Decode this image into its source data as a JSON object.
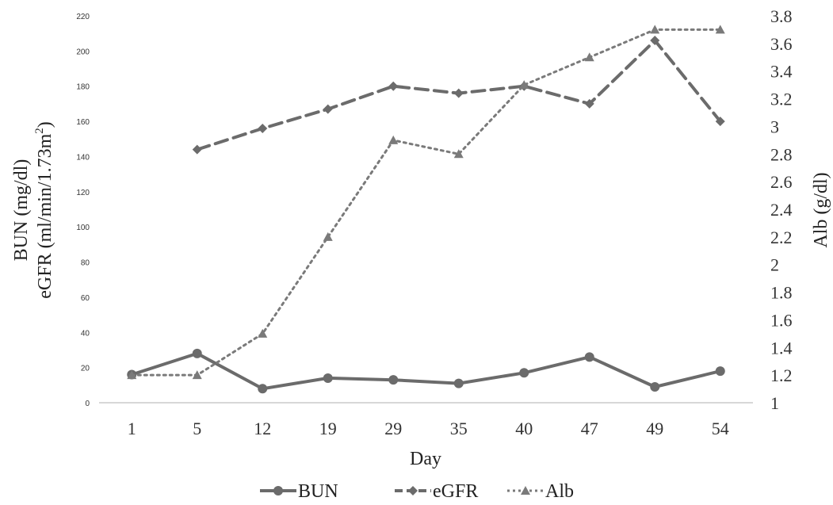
{
  "chart_data": {
    "type": "line",
    "xlabel": "Day",
    "ylabel_left_line1": "BUN (mg/dl)",
    "ylabel_left_line2": "eGFR (ml/min/1.73m",
    "ylabel_left_sup": "2",
    "ylabel_left_close": ")",
    "ylabel_right": "Alb (g/dl)",
    "categories": [
      "1",
      "5",
      "12",
      "19",
      "29",
      "35",
      "40",
      "47",
      "49",
      "54"
    ],
    "ylim_left": [
      0,
      220
    ],
    "yticks_left": [
      "0",
      "20",
      "40",
      "60",
      "80",
      "100",
      "120",
      "140",
      "160",
      "180",
      "200",
      "220"
    ],
    "ylim_right": [
      1,
      3.8
    ],
    "yticks_right": [
      "1",
      "1.2",
      "1.4",
      "1.6",
      "1.8",
      "2",
      "2.2",
      "2.4",
      "2.6",
      "2.8",
      "3",
      "3.2",
      "3.4",
      "3.6",
      "3.8"
    ],
    "legend_position": "bottom",
    "series": [
      {
        "name": "BUN",
        "axis": "left",
        "style": "solid",
        "marker": "circle",
        "color": "#6b6b6b",
        "values": [
          16,
          28,
          8,
          14,
          13,
          11,
          17,
          26,
          9,
          18
        ]
      },
      {
        "name": "eGFR",
        "axis": "left",
        "style": "dashed",
        "marker": "diamond",
        "color": "#6b6b6b",
        "values": [
          null,
          144,
          156,
          167,
          180,
          176,
          180,
          170,
          206,
          160
        ]
      },
      {
        "name": "Alb",
        "axis": "right",
        "style": "dotted",
        "marker": "triangle",
        "color": "#7a7a7a",
        "values": [
          1.2,
          1.2,
          1.5,
          2.2,
          2.9,
          2.8,
          3.3,
          3.5,
          3.7,
          3.7
        ]
      }
    ]
  }
}
